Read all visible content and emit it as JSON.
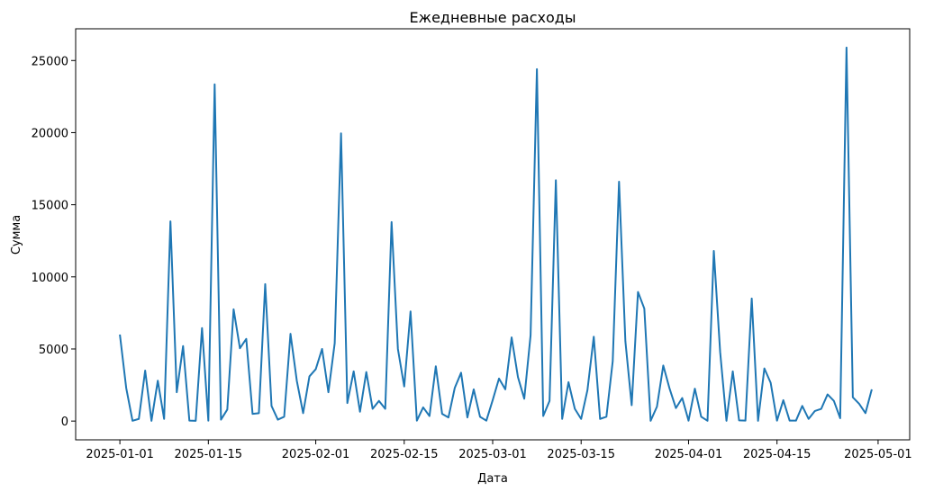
{
  "chart_data": {
    "type": "line",
    "title": "Ежедневные расходы",
    "xlabel": "Дата",
    "ylabel": "Сумма",
    "ylim": [
      -1300,
      27200
    ],
    "xlim": [
      "2024-12-25",
      "2025-05-06"
    ],
    "grid": false,
    "line_color": "#1f77b4",
    "x_ticks": [
      "2025-01-01",
      "2025-01-15",
      "2025-02-01",
      "2025-02-15",
      "2025-03-01",
      "2025-03-15",
      "2025-04-01",
      "2025-04-15",
      "2025-05-01"
    ],
    "y_ticks": [
      0,
      5000,
      10000,
      15000,
      20000,
      25000
    ],
    "series": [
      {
        "x": [
          "2025-01-01",
          "2025-01-02",
          "2025-01-03",
          "2025-01-04",
          "2025-01-05",
          "2025-01-06",
          "2025-01-07",
          "2025-01-08",
          "2025-01-09",
          "2025-01-10",
          "2025-01-11",
          "2025-01-12",
          "2025-01-13",
          "2025-01-14",
          "2025-01-15",
          "2025-01-16",
          "2025-01-17",
          "2025-01-18",
          "2025-01-19",
          "2025-01-20",
          "2025-01-21",
          "2025-01-22",
          "2025-01-23",
          "2025-01-24",
          "2025-01-25",
          "2025-01-26",
          "2025-01-27",
          "2025-01-28",
          "2025-01-29",
          "2025-01-30",
          "2025-01-31",
          "2025-02-01",
          "2025-02-02",
          "2025-02-03",
          "2025-02-04",
          "2025-02-05",
          "2025-02-06",
          "2025-02-07",
          "2025-02-08",
          "2025-02-09",
          "2025-02-10",
          "2025-02-11",
          "2025-02-12",
          "2025-02-13",
          "2025-02-14",
          "2025-02-15",
          "2025-02-16",
          "2025-02-17",
          "2025-02-18",
          "2025-02-19",
          "2025-02-20",
          "2025-02-21",
          "2025-02-22",
          "2025-02-23",
          "2025-02-24",
          "2025-02-25",
          "2025-02-26",
          "2025-02-27",
          "2025-02-28",
          "2025-03-01",
          "2025-03-02",
          "2025-03-03",
          "2025-03-04",
          "2025-03-05",
          "2025-03-06",
          "2025-03-07",
          "2025-03-08",
          "2025-03-09",
          "2025-03-10",
          "2025-03-11",
          "2025-03-12",
          "2025-03-13",
          "2025-03-14",
          "2025-03-15",
          "2025-03-16",
          "2025-03-17",
          "2025-03-18",
          "2025-03-19",
          "2025-03-20",
          "2025-03-21",
          "2025-03-22",
          "2025-03-23",
          "2025-03-24",
          "2025-03-25",
          "2025-03-26",
          "2025-03-27",
          "2025-03-28",
          "2025-03-29",
          "2025-03-30",
          "2025-03-31",
          "2025-04-01",
          "2025-04-02",
          "2025-04-03",
          "2025-04-04",
          "2025-04-05",
          "2025-04-06",
          "2025-04-07",
          "2025-04-08",
          "2025-04-09",
          "2025-04-10",
          "2025-04-11",
          "2025-04-12",
          "2025-04-13",
          "2025-04-14",
          "2025-04-15",
          "2025-04-16",
          "2025-04-17",
          "2025-04-18",
          "2025-04-19",
          "2025-04-20",
          "2025-04-21",
          "2025-04-22",
          "2025-04-23",
          "2025-04-24",
          "2025-04-25",
          "2025-04-26",
          "2025-04-27",
          "2025-04-28",
          "2025-04-29",
          "2025-04-30"
        ],
        "y": [
          6000,
          2300,
          20,
          150,
          3500,
          20,
          2800,
          150,
          13850,
          2000,
          5200,
          30,
          20,
          6450,
          30,
          23350,
          100,
          800,
          7750,
          5050,
          5700,
          500,
          550,
          9500,
          1050,
          100,
          300,
          6050,
          2800,
          550,
          3100,
          3600,
          5000,
          2000,
          5400,
          19950,
          1250,
          3450,
          650,
          3400,
          850,
          1400,
          850,
          13800,
          5000,
          2400,
          7600,
          30,
          950,
          350,
          3800,
          500,
          250,
          2300,
          3350,
          250,
          2200,
          300,
          30,
          1450,
          2950,
          2200,
          5800,
          3050,
          1550,
          5950,
          24400,
          350,
          1400,
          16700,
          150,
          2700,
          850,
          150,
          2150,
          5850,
          150,
          300,
          4150,
          16600,
          5550,
          1100,
          8950,
          7800,
          20,
          1000,
          3850,
          2250,
          900,
          1600,
          30,
          2250,
          300,
          20,
          11800,
          4800,
          20,
          3450,
          50,
          30,
          8500,
          20,
          3650,
          2650,
          30,
          1450,
          30,
          30,
          1050,
          150,
          700,
          850,
          1850,
          1400,
          200,
          25900,
          1650,
          1200,
          550,
          2200
        ]
      }
    ]
  }
}
